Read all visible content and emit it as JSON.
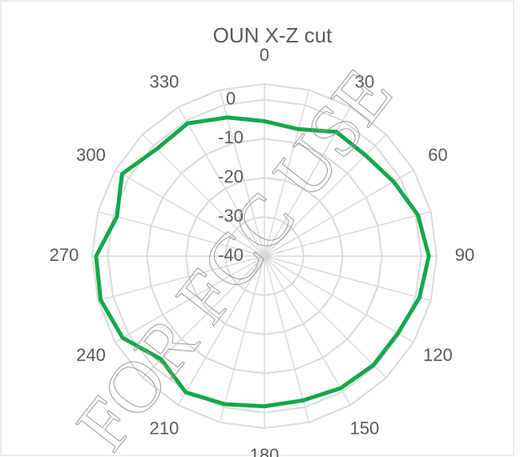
{
  "chart_data": {
    "type": "radar",
    "title": "OUN X-Z cut",
    "watermark": "FOR FCC USE",
    "categories": [
      "0",
      null,
      "30",
      null,
      "60",
      null,
      "90",
      null,
      "120",
      null,
      "150",
      null,
      "180",
      null,
      "210",
      null,
      "240",
      null,
      "270",
      null,
      "300",
      null,
      "330",
      null
    ],
    "series": [
      {
        "name": "OUN X-Z cut",
        "color": "#13a84a",
        "values": [
          -5.5,
          -6.4,
          -3.3,
          -3.5,
          -1.9,
          0.6,
          2,
          1,
          -0.6,
          -0.6,
          -1,
          -1.8,
          -1.6,
          -0.8,
          0.2,
          -2.7,
          1.8,
          3.3,
          3,
          -1,
          2,
          -1.2,
          -0.8,
          -3.3
        ]
      }
    ],
    "ylim": [
      -40,
      4
    ],
    "yticks": [
      -40,
      -30,
      -20,
      -10,
      0
    ],
    "grid": true
  }
}
